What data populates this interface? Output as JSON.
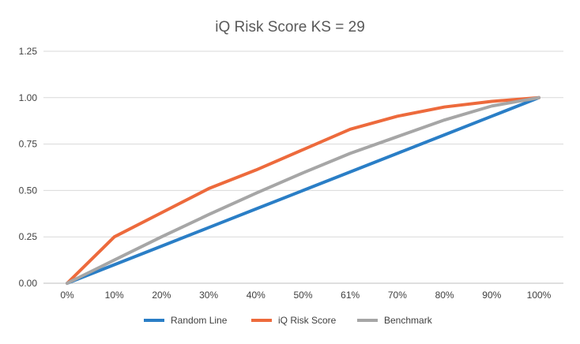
{
  "chart_data": {
    "type": "line",
    "title": "iQ Risk Score KS = 29",
    "xlabel": "",
    "ylabel": "",
    "categories": [
      "0%",
      "10%",
      "20%",
      "30%",
      "40%",
      "50%",
      "61%",
      "70%",
      "80%",
      "90%",
      "100%"
    ],
    "ylim": [
      0,
      1.25
    ],
    "yticks": [
      "0.00",
      "0.25",
      "0.50",
      "0.75",
      "1.00",
      "1.25"
    ],
    "grid": "horizontal",
    "legend_position": "bottom",
    "series": [
      {
        "name": "Random Line",
        "color": "#2a7ec6",
        "values": [
          0,
          0.1,
          0.2,
          0.3,
          0.4,
          0.5,
          0.6,
          0.7,
          0.8,
          0.9,
          1.0
        ]
      },
      {
        "name": "iQ Risk Score",
        "color": "#ed6a3c",
        "values": [
          0,
          0.25,
          0.38,
          0.51,
          0.61,
          0.72,
          0.83,
          0.9,
          0.95,
          0.98,
          1.0
        ]
      },
      {
        "name": "Benchmark",
        "color": "#a6a6a6",
        "values": [
          0,
          0.125,
          0.25,
          0.37,
          0.485,
          0.595,
          0.7,
          0.79,
          0.88,
          0.955,
          1.0
        ]
      }
    ]
  }
}
